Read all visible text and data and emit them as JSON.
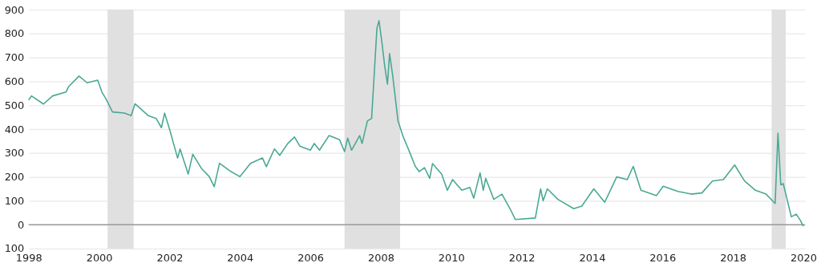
{
  "chart_data": {
    "type": "line",
    "xlim": [
      1998,
      2020.05
    ],
    "xticks": [
      1998,
      2000,
      2002,
      2004,
      2006,
      2008,
      2010,
      2012,
      2014,
      2016,
      2018,
      2020
    ],
    "ylim": [
      -100,
      900
    ],
    "yticks": [
      {
        "value": -100,
        "label": "100"
      },
      0,
      100,
      200,
      300,
      400,
      500,
      600,
      700,
      800,
      900
    ],
    "grid": "y",
    "marker": "none",
    "line_style": "solid",
    "series": [
      {
        "color": "#4aa893",
        "x": [
          1998.0,
          1998.08,
          1998.42,
          1998.68,
          1999.06,
          1999.13,
          1999.43,
          1999.66,
          1999.96,
          2000.08,
          2000.19,
          2000.38,
          2000.72,
          2000.91,
          2001.02,
          2001.4,
          2001.62,
          2001.77,
          2001.86,
          2002.0,
          2002.23,
          2002.3,
          2002.53,
          2002.66,
          2002.91,
          2003.13,
          2003.27,
          2003.42,
          2003.74,
          2004.0,
          2004.3,
          2004.64,
          2004.75,
          2004.98,
          2005.13,
          2005.36,
          2005.55,
          2005.7,
          2006.0,
          2006.11,
          2006.26,
          2006.53,
          2006.83,
          2006.97,
          2007.06,
          2007.17,
          2007.4,
          2007.47,
          2007.62,
          2007.74,
          2007.89,
          2007.95,
          2008.04,
          2008.11,
          2008.19,
          2008.25,
          2008.34,
          2008.49,
          2008.64,
          2008.83,
          2008.98,
          2009.09,
          2009.24,
          2009.39,
          2009.47,
          2009.73,
          2009.89,
          2010.04,
          2010.3,
          2010.53,
          2010.64,
          2010.82,
          2010.91,
          2010.98,
          2011.21,
          2011.44,
          2011.67,
          2011.82,
          2012.39,
          2012.54,
          2012.61,
          2012.73,
          2013.03,
          2013.48,
          2013.71,
          2014.05,
          2014.36,
          2014.7,
          2015.0,
          2015.17,
          2015.39,
          2015.83,
          2016.02,
          2016.44,
          2016.82,
          2017.12,
          2017.42,
          2017.73,
          2018.05,
          2018.33,
          2018.64,
          2018.94,
          2019.2,
          2019.28,
          2019.36,
          2019.43,
          2019.66,
          2019.8,
          2019.92,
          2020.0
        ],
        "values": [
          522,
          539,
          505,
          539,
          555,
          577,
          622,
          594,
          605,
          555,
          528,
          472,
          467,
          456,
          506,
          456,
          445,
          406,
          467,
          400,
          279,
          317,
          212,
          295,
          235,
          201,
          159,
          257,
          223,
          201,
          257,
          279,
          243,
          317,
          290,
          340,
          367,
          329,
          312,
          340,
          312,
          373,
          356,
          306,
          362,
          312,
          373,
          340,
          434,
          445,
          821,
          854,
          754,
          666,
          588,
          716,
          622,
          434,
          367,
          300,
          244,
          222,
          239,
          194,
          256,
          211,
          144,
          189,
          144,
          156,
          111,
          217,
          144,
          194,
          106,
          128,
          67,
          22,
          28,
          150,
          100,
          150,
          106,
          67,
          78,
          150,
          94,
          200,
          189,
          244,
          144,
          122,
          161,
          139,
          128,
          133,
          183,
          189,
          250,
          183,
          144,
          128,
          89,
          383,
          167,
          172,
          33,
          44,
          17,
          -6
        ]
      }
    ],
    "bands": [
      {
        "axis": "x",
        "from": 2000.24,
        "to": 2000.98,
        "color": "#e0e0e0"
      },
      {
        "axis": "x",
        "from": 2006.97,
        "to": 2008.55,
        "color": "#e0e0e0"
      },
      {
        "axis": "x",
        "from": 2019.1,
        "to": 2019.5,
        "color": "#e0e0e0"
      }
    ],
    "ref_lines": [
      {
        "axis": "y",
        "value": 0,
        "color": "#9a9a9a"
      }
    ]
  }
}
